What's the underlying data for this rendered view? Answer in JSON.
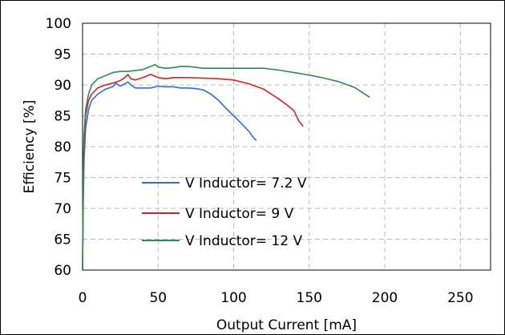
{
  "chart_data": {
    "type": "line",
    "title": "",
    "xlabel": "Output Current [mA]",
    "ylabel": "Efficiency [%]",
    "xlim": [
      0,
      270
    ],
    "ylim": [
      60,
      100
    ],
    "xticks": [
      0,
      50,
      100,
      150,
      200,
      250
    ],
    "yticks": [
      60,
      65,
      70,
      75,
      80,
      85,
      90,
      95,
      100
    ],
    "xtick_labels": [
      "0",
      "50",
      "100",
      "150",
      "200",
      "250"
    ],
    "ytick_labels": [
      "60",
      "65",
      "70",
      "75",
      "80",
      "85",
      "90",
      "95",
      "100"
    ],
    "grid": "dashed",
    "legend_position": "center-left",
    "series": [
      {
        "name": "V Inductor= 7.2 V",
        "color": "#2e6bdb",
        "points": [
          [
            0,
            60
          ],
          [
            0.5,
            71
          ],
          [
            1,
            78
          ],
          [
            2,
            83
          ],
          [
            4,
            86
          ],
          [
            6,
            87.5
          ],
          [
            10,
            88.5
          ],
          [
            15,
            89.3
          ],
          [
            20,
            89.7
          ],
          [
            22,
            90.3
          ],
          [
            25,
            89.8
          ],
          [
            28,
            90.2
          ],
          [
            30,
            90.5
          ],
          [
            32,
            90
          ],
          [
            35,
            89.5
          ],
          [
            40,
            89.5
          ],
          [
            45,
            89.5
          ],
          [
            50,
            89.8
          ],
          [
            55,
            89.7
          ],
          [
            60,
            89.7
          ],
          [
            65,
            89.5
          ],
          [
            70,
            89.5
          ],
          [
            75,
            89.4
          ],
          [
            80,
            89.2
          ],
          [
            85,
            88.5
          ],
          [
            90,
            87.5
          ],
          [
            95,
            86.2
          ],
          [
            100,
            85
          ],
          [
            105,
            83.8
          ],
          [
            110,
            82.5
          ],
          [
            113,
            81.5
          ],
          [
            115,
            81
          ]
        ]
      },
      {
        "name": "V Inductor= 9 V",
        "color": "#e01e1e",
        "points": [
          [
            0,
            60
          ],
          [
            0.5,
            74
          ],
          [
            1,
            80
          ],
          [
            2,
            85
          ],
          [
            4,
            87.5
          ],
          [
            6,
            88.5
          ],
          [
            10,
            89.5
          ],
          [
            15,
            90
          ],
          [
            20,
            90.3
          ],
          [
            25,
            90.7
          ],
          [
            28,
            91.2
          ],
          [
            30,
            91.7
          ],
          [
            32,
            91
          ],
          [
            35,
            90.8
          ],
          [
            40,
            91.2
          ],
          [
            45,
            91.7
          ],
          [
            50,
            91.2
          ],
          [
            55,
            91
          ],
          [
            60,
            91.2
          ],
          [
            70,
            91.2
          ],
          [
            80,
            91.1
          ],
          [
            90,
            91
          ],
          [
            100,
            90.8
          ],
          [
            110,
            90.2
          ],
          [
            120,
            89.3
          ],
          [
            125,
            88.5
          ],
          [
            130,
            87.7
          ],
          [
            135,
            86.8
          ],
          [
            140,
            85.8
          ],
          [
            143,
            84.2
          ],
          [
            146,
            83.3
          ]
        ]
      },
      {
        "name": "V Inductor= 12 V",
        "color": "#2e8b57",
        "points": [
          [
            0,
            60
          ],
          [
            0.5,
            76
          ],
          [
            1,
            82
          ],
          [
            2,
            86
          ],
          [
            4,
            88.5
          ],
          [
            6,
            90
          ],
          [
            10,
            91
          ],
          [
            15,
            91.5
          ],
          [
            20,
            92
          ],
          [
            25,
            92.2
          ],
          [
            30,
            92.2
          ],
          [
            40,
            92.5
          ],
          [
            45,
            93
          ],
          [
            48,
            93.3
          ],
          [
            50,
            92.9
          ],
          [
            55,
            92.7
          ],
          [
            60,
            92.8
          ],
          [
            65,
            93
          ],
          [
            70,
            93
          ],
          [
            80,
            92.7
          ],
          [
            100,
            92.7
          ],
          [
            120,
            92.7
          ],
          [
            130,
            92.4
          ],
          [
            140,
            92
          ],
          [
            150,
            91.6
          ],
          [
            160,
            91.1
          ],
          [
            170,
            90.5
          ],
          [
            180,
            89.6
          ],
          [
            185,
            88.8
          ],
          [
            190,
            88
          ]
        ]
      }
    ]
  }
}
